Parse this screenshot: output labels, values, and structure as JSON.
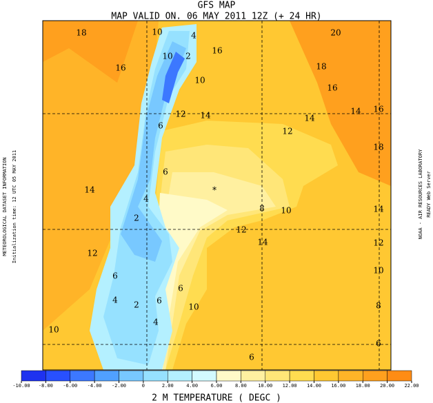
{
  "header": {
    "title": "GFS MAP",
    "subtitle": "MAP VALID ON. 06 MAY 2011 12Z (+ 24 HR)"
  },
  "left_info": {
    "dataset": "METEOROLOGICAL DATASET INFORMATION",
    "init": "Initialization time: 12 UTC 05 MAY 2011"
  },
  "right_info": {
    "lab": "NOAA - AIR RESOURCES LABORATORY",
    "server": "READY Web Server"
  },
  "map": {
    "marker": "*",
    "contour_labels": [
      "18",
      "10",
      "4",
      "20",
      "16",
      "10",
      "2",
      "16",
      "18",
      "16",
      "10",
      "14",
      "16",
      "12",
      "14",
      "14",
      "6",
      "12",
      "18",
      "6",
      "14",
      "4",
      "8",
      "10",
      "14",
      "2",
      "12",
      "14",
      "12",
      "12",
      "10",
      "6",
      "6",
      "4",
      "2",
      "6",
      "10",
      "8",
      "4",
      "10",
      "6",
      "6"
    ]
  },
  "colorbar": {
    "title": "2 M TEMPERATURE ( DEGC )",
    "ticks": [
      {
        "value": -10,
        "label": "-10.00"
      },
      {
        "value": -8,
        "label": "-8.00"
      },
      {
        "value": -6,
        "label": "-6.00"
      },
      {
        "value": -4,
        "label": "-4.00"
      },
      {
        "value": -2,
        "label": "-2.00"
      },
      {
        "value": 0,
        "label": "0"
      },
      {
        "value": 2,
        "label": "2.00"
      },
      {
        "value": 4,
        "label": "4.00"
      },
      {
        "value": 6,
        "label": "6.00"
      },
      {
        "value": 8,
        "label": "8.00"
      },
      {
        "value": 10,
        "label": "10.00"
      },
      {
        "value": 12,
        "label": "12.00"
      },
      {
        "value": 14,
        "label": "14.00"
      },
      {
        "value": 16,
        "label": "16.00"
      },
      {
        "value": 18,
        "label": "18.00"
      },
      {
        "value": 20,
        "label": "20.00"
      },
      {
        "value": 22,
        "label": "22.00"
      }
    ],
    "colors": [
      "#1e32f0",
      "#2850ff",
      "#3c78ff",
      "#50a0ff",
      "#78c8ff",
      "#96e1ff",
      "#b4f0ff",
      "#d2faff",
      "#fffac8",
      "#fff0a0",
      "#ffe678",
      "#ffdc50",
      "#ffc832",
      "#ffb428",
      "#ffa01e",
      "#ff8c14"
    ]
  }
}
